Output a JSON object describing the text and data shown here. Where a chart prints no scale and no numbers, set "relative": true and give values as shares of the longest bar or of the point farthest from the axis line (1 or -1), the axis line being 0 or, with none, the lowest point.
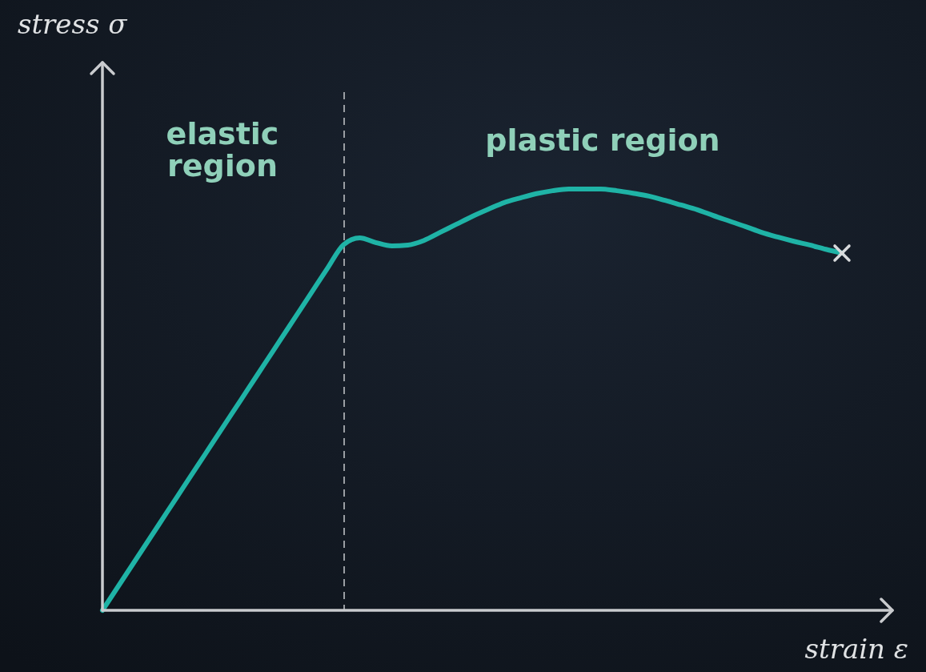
{
  "chart_data": {
    "type": "line",
    "relative": true,
    "xlabel": "strain ε",
    "marker": "none",
    "line_style": "solid",
    "categories": [
      null,
      null,
      null,
      null,
      null,
      null,
      null,
      null,
      null,
      null,
      null,
      null,
      null,
      null,
      null,
      null,
      null,
      null,
      null,
      null,
      null,
      null,
      null,
      null,
      null,
      null,
      null,
      null,
      null,
      null,
      null,
      null,
      null,
      null,
      null,
      null,
      null,
      null,
      null,
      null,
      null,
      null,
      null,
      null,
      null,
      null,
      null
    ],
    "series": [
      {
        "color": "#1fb3a6",
        "values": [
          0,
          0.058,
          0.116,
          0.174,
          0.232,
          0.29,
          0.348,
          0.406,
          0.464,
          0.522,
          0.58,
          0.638,
          0.696,
          0.754,
          0.812,
          0.868,
          0.884,
          0.873,
          0.865,
          0.867,
          0.878,
          0.897,
          0.916,
          0.935,
          0.952,
          0.968,
          0.979,
          0.989,
          0.996,
          1,
          1,
          1,
          0.996,
          0.99,
          0.983,
          0.973,
          0.962,
          0.951,
          0.937,
          0.924,
          0.911,
          0.897,
          0.886,
          0.876,
          0.867,
          0.857,
          0.848
        ]
      }
    ],
    "annotations": [
      "elastic region",
      "plastic region",
      "stress σ"
    ]
  }
}
